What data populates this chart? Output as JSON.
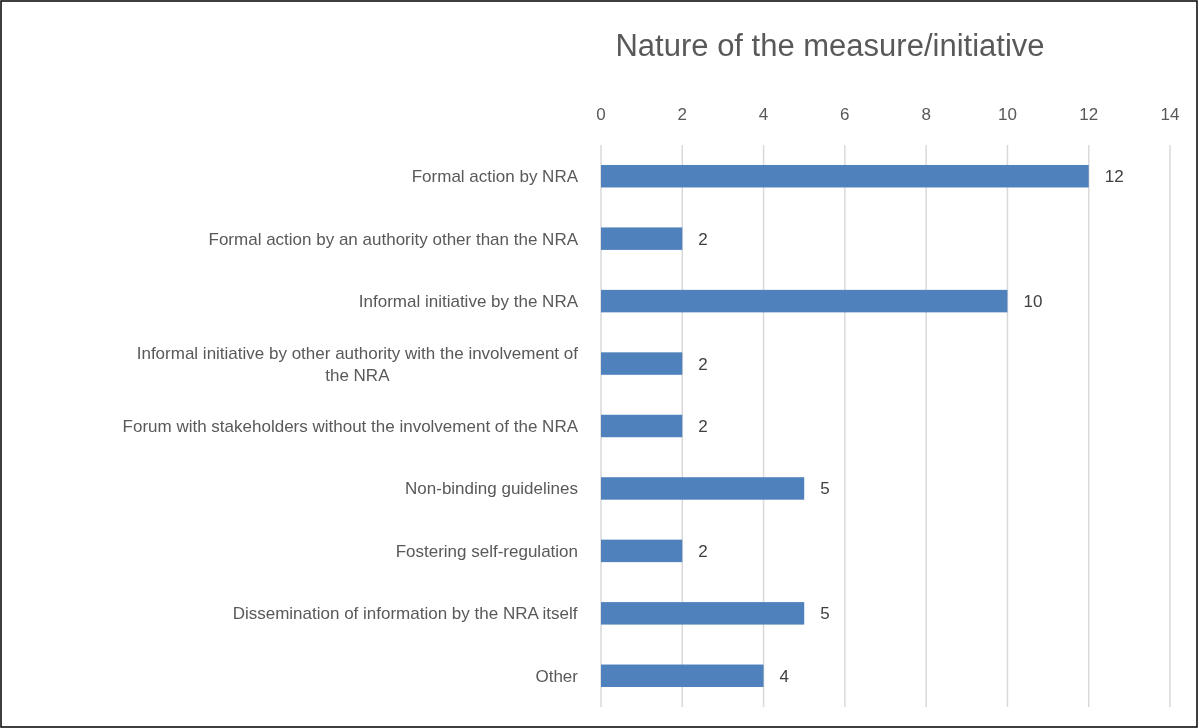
{
  "chart_data": {
    "type": "bar",
    "orientation": "horizontal",
    "title": "Nature of the measure/initiative",
    "categories": [
      "Formal action by NRA",
      "Formal action by an authority other than the NRA",
      "Informal initiative by the NRA",
      "Informal initiative by other authority with the involvement of the NRA",
      "Forum with stakeholders without the involvement of the NRA",
      "Non-binding guidelines",
      "Fostering self-regulation",
      "Dissemination of information by the NRA itself",
      "Other"
    ],
    "values": [
      12,
      2,
      10,
      2,
      2,
      5,
      2,
      5,
      4
    ],
    "color": "#4f81bd",
    "xlim": [
      0,
      14
    ],
    "xticks": [
      0,
      2,
      4,
      6,
      8,
      10,
      12,
      14
    ],
    "grid": "x",
    "data_labels": true
  }
}
